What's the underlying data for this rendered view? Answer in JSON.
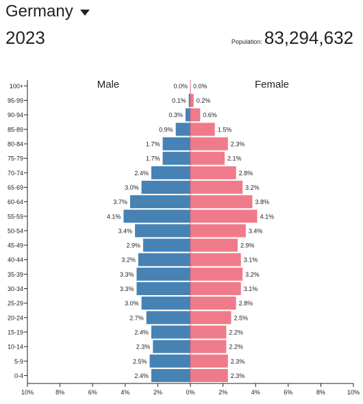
{
  "header": {
    "country": "Germany",
    "year": "2023",
    "population_label": "Population:",
    "population_value": "83,294,632"
  },
  "icons": {
    "dropdown": "caret-down-icon"
  },
  "colors": {
    "male": "#4682b4",
    "female": "#ef7b8a",
    "axis": "#222222",
    "center_tick": "#d06a80"
  },
  "chart_data": {
    "type": "bar",
    "orientation": "horizontal-population-pyramid",
    "categories": [
      "0-4",
      "5-9",
      "10-14",
      "15-19",
      "20-24",
      "25-29",
      "30-34",
      "35-39",
      "40-44",
      "45-49",
      "50-54",
      "55-59",
      "60-64",
      "65-69",
      "70-74",
      "75-79",
      "80-84",
      "85-89",
      "90-94",
      "95-99",
      "100+"
    ],
    "series": [
      {
        "name": "Male",
        "values": [
          2.4,
          2.5,
          2.3,
          2.4,
          2.7,
          3.0,
          3.3,
          3.3,
          3.2,
          2.9,
          3.4,
          4.1,
          3.7,
          3.0,
          2.4,
          1.7,
          1.7,
          0.9,
          0.3,
          0.1,
          0.0
        ]
      },
      {
        "name": "Female",
        "values": [
          2.3,
          2.3,
          2.2,
          2.2,
          2.5,
          2.8,
          3.1,
          3.2,
          3.1,
          2.9,
          3.4,
          4.1,
          3.8,
          3.2,
          2.8,
          2.1,
          2.3,
          1.5,
          0.6,
          0.2,
          0.0
        ]
      }
    ],
    "xlim": [
      -10,
      10
    ],
    "xticks": [
      "10%",
      "8%",
      "6%",
      "4%",
      "2%",
      "0%",
      "2%",
      "4%",
      "6%",
      "8%",
      "10%"
    ],
    "unit": "%"
  }
}
